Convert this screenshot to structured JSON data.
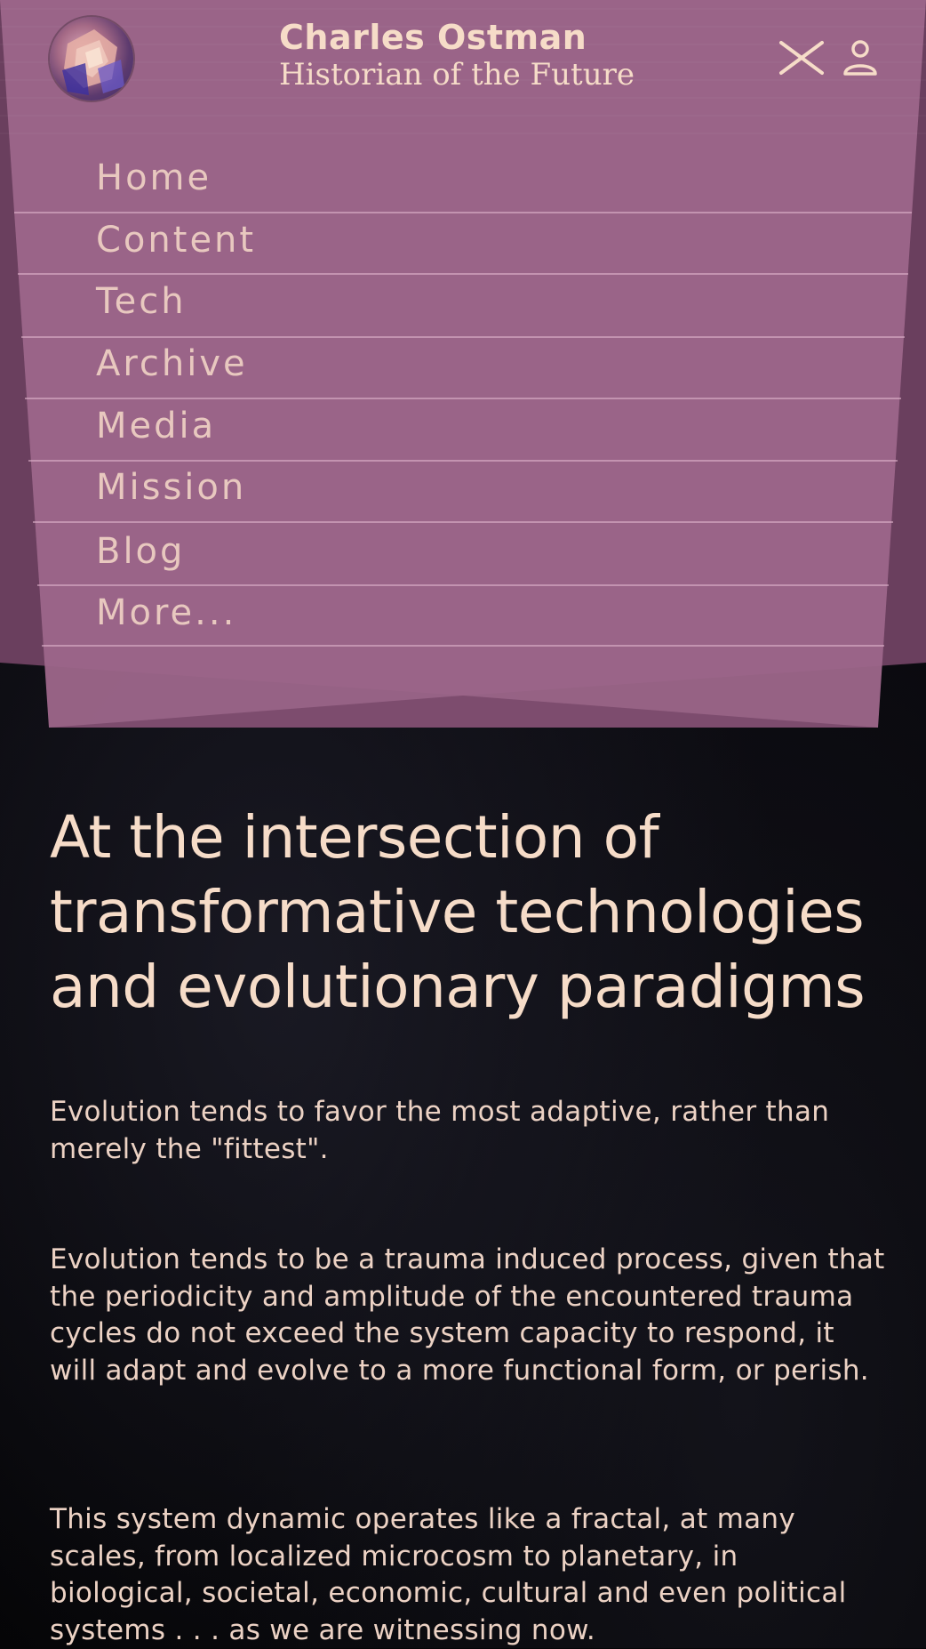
{
  "header": {
    "avatar_alt": "Charles Ostman avatar",
    "name": "Charles Ostman",
    "tagline": "Historian of the Future",
    "close_icon": "close-icon",
    "user_icon": "user-icon"
  },
  "nav": {
    "items": [
      {
        "label": "Home"
      },
      {
        "label": "Content"
      },
      {
        "label": "Tech"
      },
      {
        "label": "Archive"
      },
      {
        "label": "Media"
      },
      {
        "label": "Mission"
      },
      {
        "label": "Blog"
      },
      {
        "label": "More..."
      }
    ]
  },
  "main": {
    "headline": "At the intersection of transformative technologies and evolutionary paradigms",
    "paragraphs": [
      "Evolution tends to favor the most adaptive, rather than merely the \"fittest\".",
      "Evolution tends to be a trauma induced process, given that the periodicity and amplitude of the encountered trauma cycles do not exceed the system capacity to respond, it will adapt and evolve to a more functional form, or perish.",
      "This system dynamic operates like a fractal, at many scales, from localized microcosm to planetary, in biological, societal, economic, cultural and even political systems . . . as we are witnessing now."
    ]
  },
  "colors": {
    "panel_light": "#9b6589",
    "panel_dark": "#6a3f5e",
    "text_cream": "#f6dcc8",
    "background": "#050507"
  }
}
